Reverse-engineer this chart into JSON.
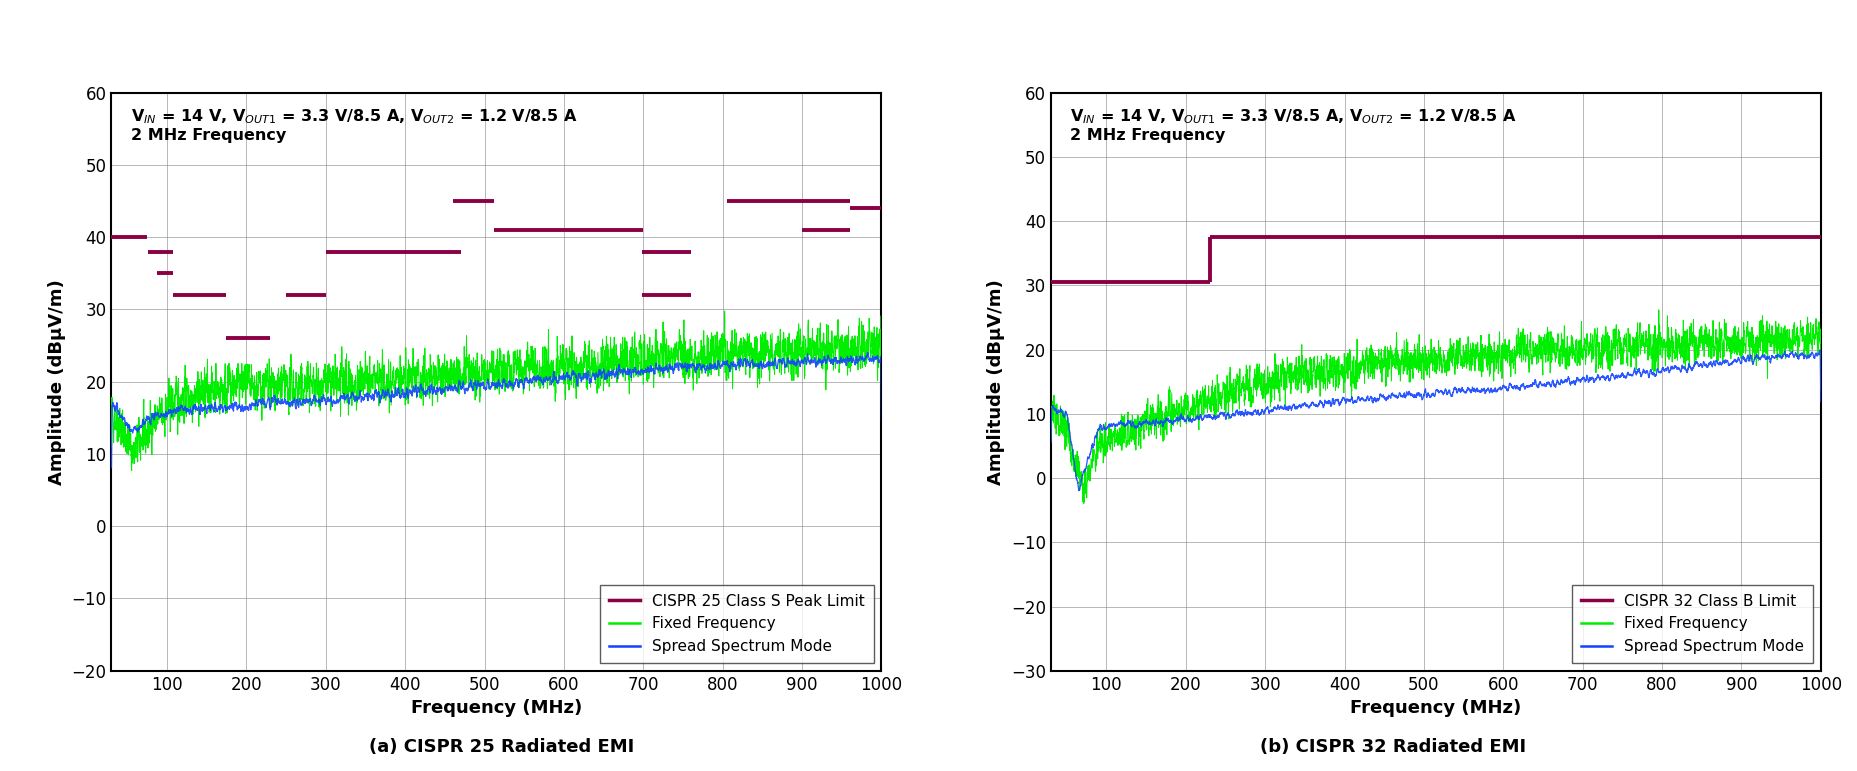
{
  "fig_width": 18.58,
  "fig_height": 7.71,
  "background_color": "#ffffff",
  "plot1": {
    "annotation_line1": "V$_{IN}$ = 14 V, V$_{OUT1}$ = 3.3 V/8.5 A, V$_{OUT2}$ = 1.2 V/8.5 A",
    "annotation_line2": "2 MHz Frequency",
    "xlabel": "Frequency (MHz)",
    "ylabel": "Amplitude (dBµV/m)",
    "xlim": [
      30,
      1000
    ],
    "ylim": [
      -20,
      60
    ],
    "yticks": [
      -20,
      -10,
      0,
      10,
      20,
      30,
      40,
      50,
      60
    ],
    "xticks": [
      100,
      200,
      300,
      400,
      500,
      600,
      700,
      800,
      900,
      1000
    ],
    "subtitle": "(a) CISPR 25 Radiated EMI",
    "legend_labels": [
      "CISPR 25 Class S Peak Limit",
      "Fixed Frequency",
      "Spread Spectrum Mode"
    ],
    "limit_color": "#8B0045",
    "ff_color": "#00EE00",
    "ss_color": "#1144FF",
    "cispr25_segs": [
      [
        30,
        75,
        40
      ],
      [
        76,
        108,
        38
      ],
      [
        87,
        108,
        35
      ],
      [
        108,
        174,
        32
      ],
      [
        174,
        230,
        26
      ],
      [
        250,
        300,
        32
      ],
      [
        300,
        470,
        38
      ],
      [
        460,
        512,
        45
      ],
      [
        512,
        700,
        41
      ],
      [
        698,
        760,
        38
      ],
      [
        698,
        760,
        32
      ],
      [
        806,
        960,
        45
      ],
      [
        900,
        960,
        41
      ],
      [
        960,
        1000,
        44
      ]
    ]
  },
  "plot2": {
    "annotation_line1": "V$_{IN}$ = 14 V, V$_{OUT1}$ = 3.3 V/8.5 A, V$_{OUT2}$ = 1.2 V/8.5 A",
    "annotation_line2": "2 MHz Frequency",
    "xlabel": "Frequency (MHz)",
    "ylabel": "Amplitude (dBµV/m)",
    "xlim": [
      30,
      1000
    ],
    "ylim": [
      -30,
      60
    ],
    "yticks": [
      -30,
      -20,
      -10,
      0,
      10,
      20,
      30,
      40,
      50,
      60
    ],
    "xticks": [
      100,
      200,
      300,
      400,
      500,
      600,
      700,
      800,
      900,
      1000
    ],
    "subtitle": "(b) CISPR 32 Radiated EMI",
    "legend_labels": [
      "CISPR 32 Class B Limit",
      "Fixed Frequency",
      "Spread Spectrum Mode"
    ],
    "limit_color": "#8B0045",
    "ff_color": "#00EE00",
    "ss_color": "#1144FF",
    "cispr32_limit_segments": [
      [
        30,
        230,
        30.5
      ],
      [
        230,
        1000,
        37.5
      ]
    ]
  },
  "grid_color": "#888888",
  "grid_alpha": 0.6,
  "grid_linewidth": 0.7,
  "axis_linewidth": 1.5,
  "tick_fontsize": 12,
  "label_fontsize": 13,
  "annotation_fontsize": 11.5,
  "legend_fontsize": 11,
  "subtitle_fontsize": 13
}
